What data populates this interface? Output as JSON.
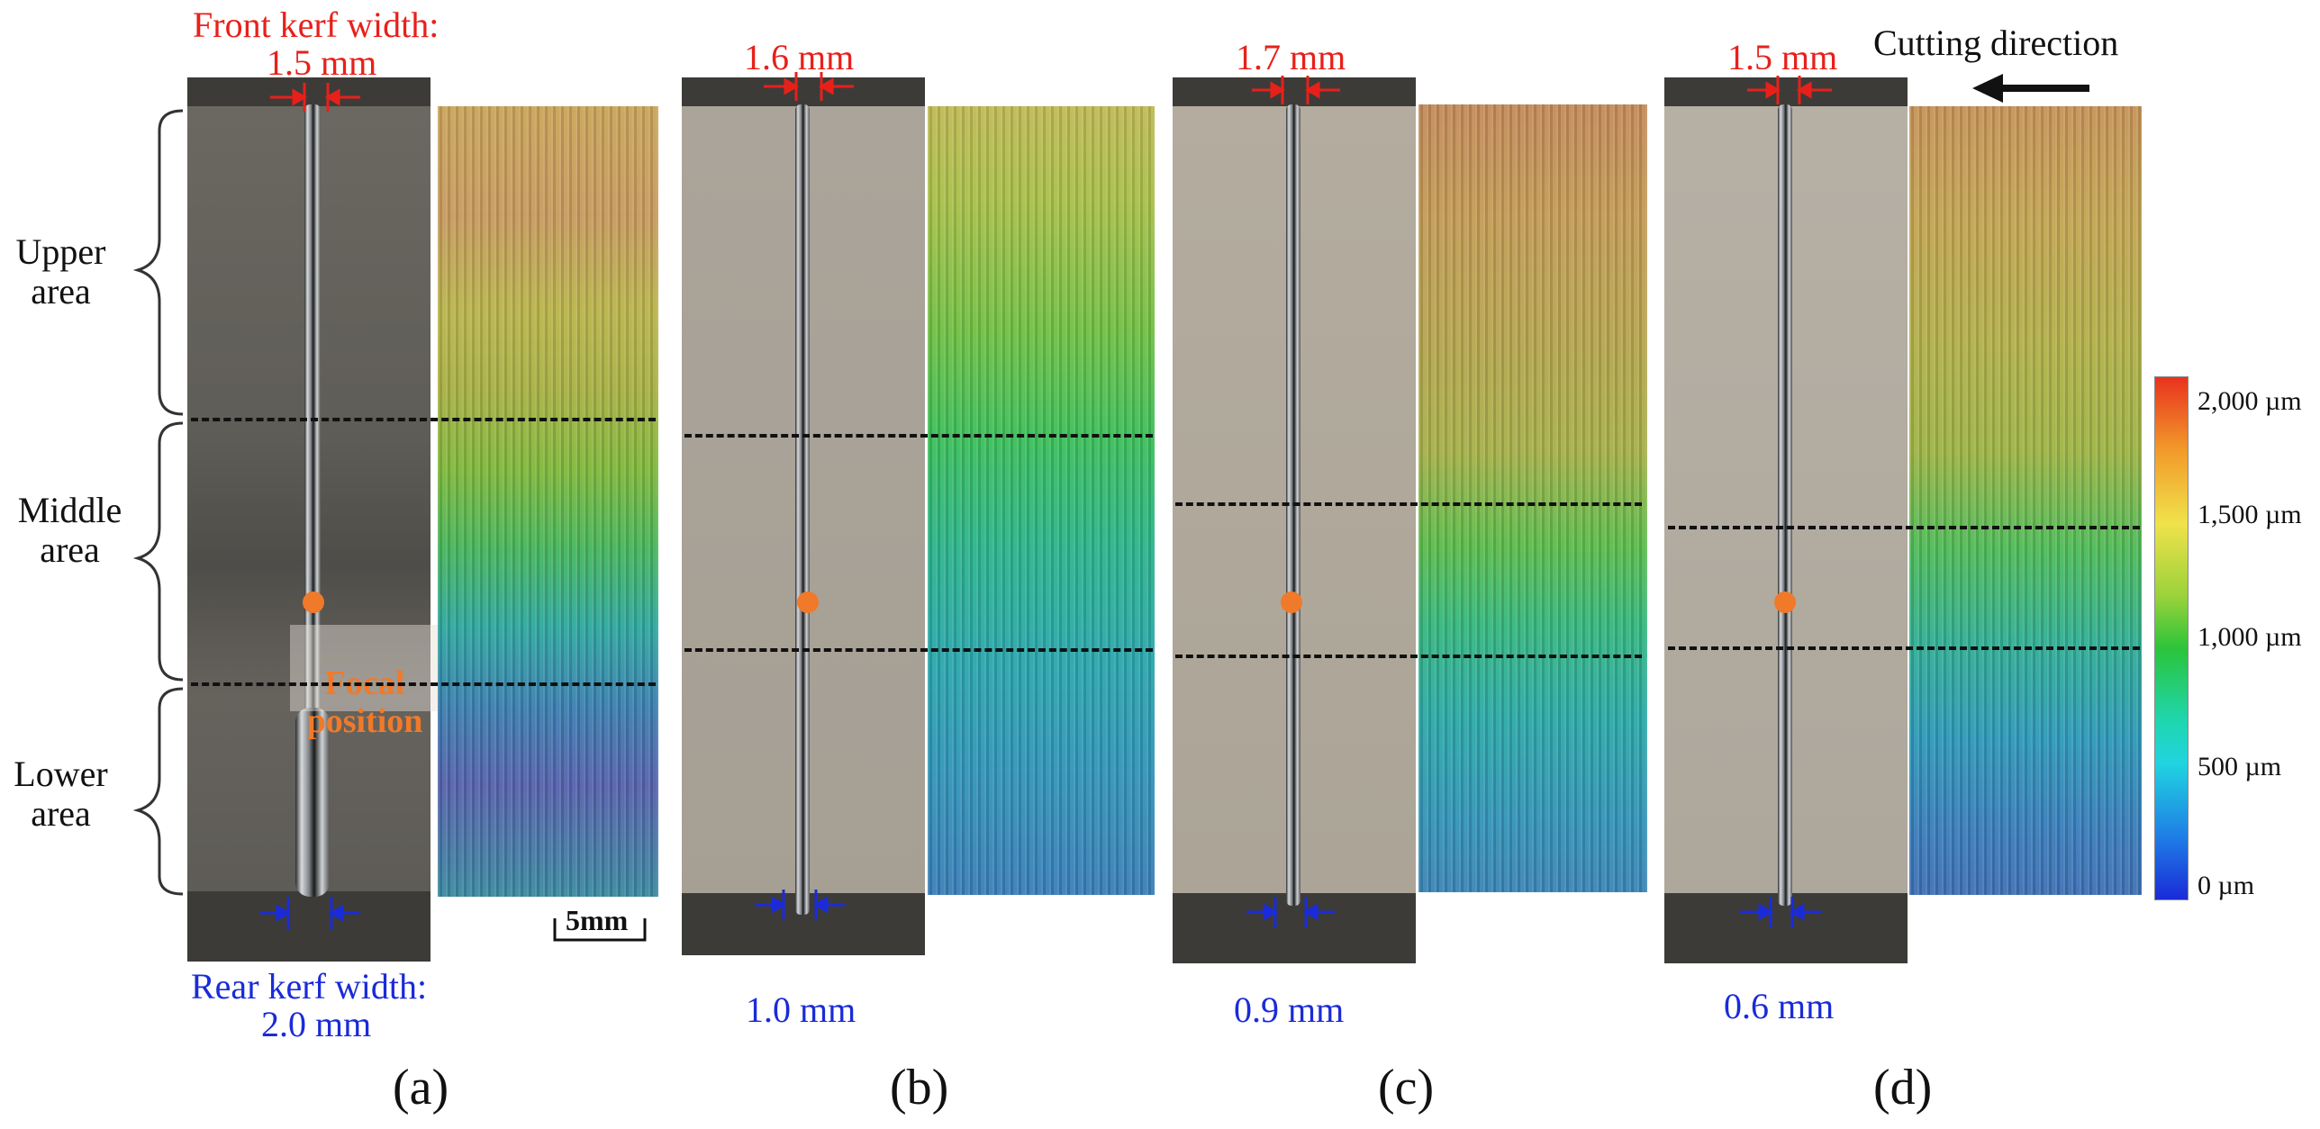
{
  "top_right": {
    "cutting_direction": "Cutting direction"
  },
  "panel_a": {
    "front_label": "Front kerf width:",
    "front_value": "1.5 mm",
    "rear_label": "Rear kerf width:",
    "rear_value": "2.0 mm",
    "focal_text": "Focal\nposition",
    "scale_bar": "5mm",
    "caption": "(a)"
  },
  "panel_b": {
    "front_value": "1.6 mm",
    "rear_value": "1.0 mm",
    "caption": "(b)"
  },
  "panel_c": {
    "front_value": "1.7 mm",
    "rear_value": "0.9 mm",
    "caption": "(c)"
  },
  "panel_d": {
    "front_value": "1.5 mm",
    "rear_value": "0.6 mm",
    "caption": "(d)"
  },
  "regions": {
    "upper": "Upper\narea",
    "middle": "Middle\narea",
    "lower": "Lower\narea"
  },
  "colorbar": {
    "ticks": [
      "2,000 µm",
      "1,500 µm",
      "1,000 µm",
      "500 µm",
      "0 µm"
    ],
    "colors": [
      "#e8321e",
      "#f0e24a",
      "#2bc43a",
      "#20d4e0",
      "#1a2bd8"
    ]
  }
}
